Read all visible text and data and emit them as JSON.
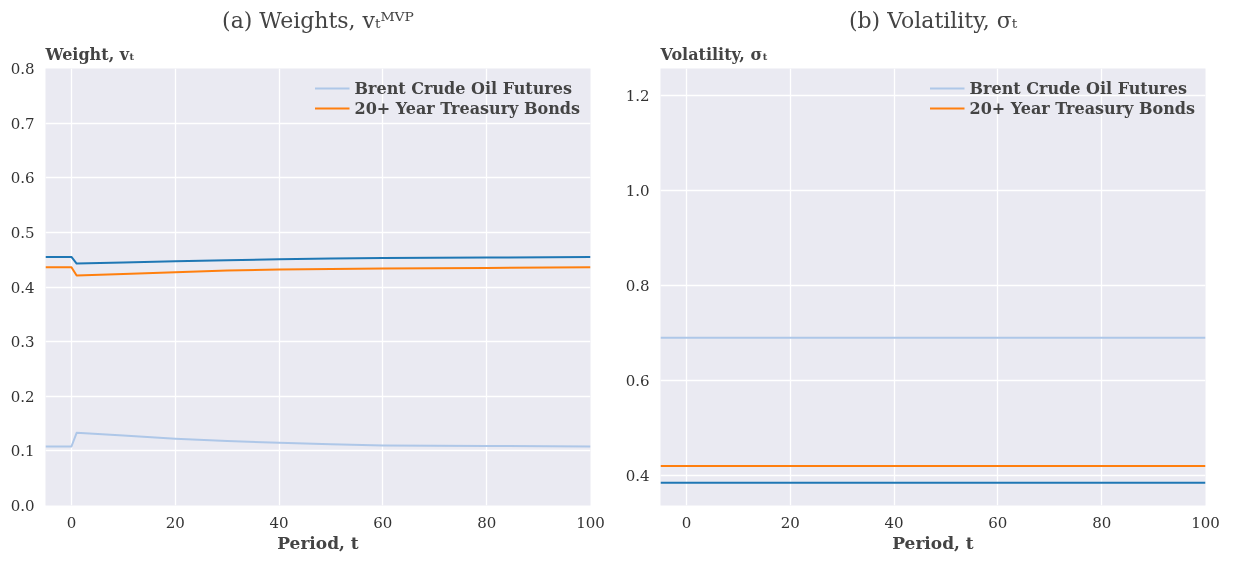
{
  "chart_data": [
    {
      "type": "line",
      "title": "(a) Weights, vₜᴹⱽᴾ",
      "xlabel": "Period, t",
      "ylabel": "Weight, vₜ",
      "xlim": [
        -5,
        100
      ],
      "ylim": [
        0,
        0.8
      ],
      "xticks": [
        0,
        20,
        40,
        60,
        80,
        100
      ],
      "yticks": [
        {
          "value": 0,
          "label": "0.0"
        },
        0.1,
        0.2,
        0.3,
        0.4,
        0.5,
        0.6,
        0.7,
        0.8
      ],
      "grid": true,
      "legend": "top right",
      "x": [
        -5,
        0,
        1,
        10,
        20,
        30,
        40,
        50,
        60,
        80,
        100
      ],
      "series": [
        {
          "color": "#1f77b4",
          "values": [
            0.455,
            0.455,
            0.443,
            0.445,
            0.447,
            0.449,
            0.451,
            0.452,
            0.453,
            0.454,
            0.455
          ]
        },
        {
          "name": "Brent Crude Oil Futures",
          "color": "#aec7e8",
          "values": [
            0.108,
            0.108,
            0.133,
            0.128,
            0.122,
            0.118,
            0.115,
            0.112,
            0.11,
            0.109,
            0.108
          ]
        },
        {
          "name": "20+ Year Treasury Bonds",
          "color": "#ff7f0e",
          "values": [
            0.436,
            0.436,
            0.421,
            0.424,
            0.427,
            0.43,
            0.432,
            0.433,
            0.434,
            0.435,
            0.436
          ]
        }
      ]
    },
    {
      "type": "line",
      "title": "(b) Volatility, σₜ",
      "xlabel": "Period, t",
      "ylabel": "Volatility, σₜ",
      "xlim": [
        -5,
        100
      ],
      "ylim": [
        0.337,
        1.257
      ],
      "xticks": [
        0,
        20,
        40,
        60,
        80,
        100
      ],
      "yticks": [
        {
          "value": 0.4,
          "label": "0.4"
        },
        {
          "value": 0.6,
          "label": "0.6"
        },
        {
          "value": 0.8,
          "label": "0.8"
        },
        {
          "value": 1.0,
          "label": "1.0"
        },
        {
          "value": 1.2,
          "label": "1.2"
        }
      ],
      "grid": true,
      "legend": "top right",
      "x": [
        -5,
        100
      ],
      "series": [
        {
          "color": "#1f77b4",
          "values": [
            0.385,
            0.385
          ]
        },
        {
          "name": "Brent Crude Oil Futures",
          "color": "#aec7e8",
          "values": [
            0.69,
            0.69
          ]
        },
        {
          "name": "20+ Year Treasury Bonds",
          "color": "#ff7f0e",
          "values": [
            0.42,
            0.42
          ]
        }
      ]
    }
  ]
}
